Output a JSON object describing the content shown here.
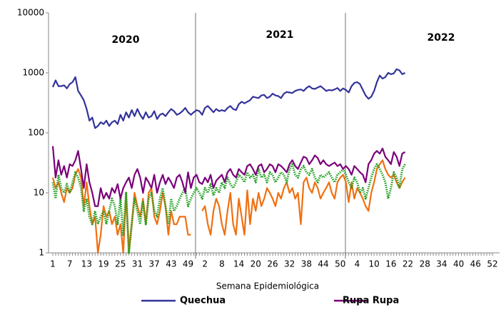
{
  "chart_data": {
    "type": "line",
    "log": true,
    "x_label": "Semana Epidemiológica",
    "annotations": [
      "2020",
      "2021",
      "2022"
    ],
    "ylim": [
      1,
      10000
    ],
    "yticks": [
      1,
      10,
      100,
      1000,
      10000
    ],
    "categories": [
      "1",
      null,
      null,
      null,
      null,
      null,
      "7",
      null,
      null,
      null,
      null,
      null,
      "13",
      null,
      null,
      null,
      null,
      null,
      "19",
      null,
      null,
      null,
      null,
      null,
      "25",
      null,
      null,
      null,
      null,
      null,
      "31",
      null,
      null,
      null,
      null,
      null,
      "37",
      null,
      null,
      null,
      null,
      null,
      "43",
      null,
      null,
      null,
      null,
      null,
      "49",
      null,
      null,
      null,
      null,
      null,
      "2",
      null,
      null,
      null,
      null,
      null,
      "8",
      null,
      null,
      null,
      null,
      null,
      "14",
      null,
      null,
      null,
      null,
      null,
      "20",
      null,
      null,
      null,
      null,
      null,
      "26",
      null,
      null,
      null,
      null,
      null,
      "32",
      null,
      null,
      null,
      null,
      null,
      "38",
      null,
      null,
      null,
      null,
      null,
      "44",
      null,
      null,
      null,
      null,
      null,
      "50",
      null,
      null,
      null,
      null,
      null,
      "4",
      null,
      null,
      null,
      null,
      null,
      "10",
      null,
      null,
      null,
      null,
      null,
      "16",
      null,
      null,
      null,
      null,
      null,
      "22",
      null,
      null,
      null,
      null,
      null,
      "28",
      null,
      null,
      null,
      null,
      null,
      "34",
      null,
      null,
      null,
      null,
      null,
      "40",
      null,
      null,
      null,
      null,
      null,
      "46",
      null,
      null,
      null,
      null,
      null,
      "52"
    ],
    "series": [
      {
        "color": "#f07010",
        "values": [
          18,
          12,
          15,
          10,
          7,
          12,
          10,
          12,
          20,
          25,
          18,
          6,
          15,
          6,
          3,
          4,
          1,
          2,
          6,
          4,
          5,
          3,
          4,
          2,
          3,
          1,
          10,
          1,
          3,
          10,
          6,
          4,
          8,
          3,
          10,
          12,
          4,
          3,
          5,
          10,
          6,
          2,
          5,
          3,
          3,
          4,
          4,
          4,
          2,
          2,
          null,
          null,
          null,
          5,
          6,
          3,
          2,
          5,
          8,
          6,
          3,
          2,
          5,
          10,
          3,
          2,
          8,
          4,
          2,
          11,
          3,
          8,
          5,
          10,
          6,
          8,
          12,
          10,
          8,
          6,
          10,
          8,
          12,
          15,
          10,
          12,
          8,
          10,
          3,
          15,
          18,
          12,
          10,
          15,
          12,
          8,
          10,
          12,
          15,
          10,
          8,
          15,
          18,
          20,
          15,
          7,
          15,
          8,
          12,
          10,
          8,
          6,
          5,
          10,
          15,
          25,
          30,
          35,
          25,
          20,
          18,
          20,
          15,
          12,
          15,
          18,
          null,
          null,
          null,
          null,
          null,
          null,
          null,
          null,
          null,
          null,
          null,
          null,
          null,
          null,
          null,
          null,
          null,
          null,
          null,
          null,
          null,
          null,
          null,
          null,
          null,
          null,
          null,
          null,
          null,
          null,
          null
        ]
      },
      {
        "color": "#22a022",
        "line_style": "dotted",
        "values": [
          15,
          8,
          20,
          12,
          10,
          14,
          10,
          15,
          22,
          18,
          12,
          5,
          8,
          4,
          3,
          5,
          3,
          4,
          5,
          3,
          5,
          8,
          6,
          3,
          8,
          2,
          10,
          1,
          3,
          8,
          5,
          3,
          7,
          3,
          8,
          10,
          5,
          4,
          8,
          12,
          6,
          3,
          8,
          5,
          6,
          8,
          10,
          12,
          6,
          8,
          10,
          12,
          10,
          8,
          12,
          10,
          14,
          9,
          12,
          10,
          15,
          12,
          18,
          14,
          12,
          15,
          20,
          18,
          15,
          22,
          18,
          20,
          15,
          25,
          18,
          20,
          15,
          22,
          20,
          15,
          18,
          22,
          20,
          15,
          25,
          30,
          20,
          18,
          25,
          28,
          22,
          20,
          25,
          18,
          15,
          20,
          18,
          20,
          22,
          18,
          15,
          20,
          22,
          25,
          20,
          15,
          12,
          18,
          15,
          10,
          12,
          8,
          12,
          18,
          25,
          30,
          25,
          20,
          15,
          8,
          12,
          22,
          18,
          12,
          25,
          30,
          null,
          null,
          null,
          null,
          null,
          null,
          null,
          null,
          null,
          null,
          null,
          null,
          null,
          null,
          null,
          null,
          null,
          null,
          null,
          null,
          null,
          null,
          null,
          null,
          null,
          null,
          null,
          null,
          null,
          null,
          null
        ]
      },
      {
        "name": "Rupa Rupa",
        "color": "#7a007a",
        "values": [
          60,
          18,
          35,
          20,
          28,
          18,
          30,
          28,
          35,
          50,
          25,
          12,
          30,
          15,
          10,
          6,
          6,
          12,
          8,
          10,
          8,
          12,
          10,
          14,
          8,
          12,
          15,
          18,
          12,
          20,
          25,
          18,
          10,
          18,
          15,
          12,
          20,
          10,
          15,
          20,
          14,
          18,
          15,
          12,
          18,
          20,
          15,
          10,
          22,
          12,
          18,
          20,
          15,
          14,
          18,
          15,
          20,
          12,
          16,
          18,
          20,
          15,
          22,
          25,
          20,
          18,
          25,
          22,
          20,
          28,
          30,
          25,
          20,
          28,
          30,
          22,
          25,
          30,
          28,
          22,
          30,
          28,
          25,
          22,
          30,
          35,
          28,
          25,
          32,
          40,
          38,
          30,
          35,
          42,
          38,
          30,
          35,
          30,
          28,
          30,
          32,
          28,
          30,
          25,
          28,
          25,
          20,
          28,
          25,
          22,
          20,
          15,
          30,
          35,
          45,
          50,
          45,
          55,
          40,
          35,
          30,
          48,
          40,
          28,
          45,
          48,
          null,
          null,
          null,
          null,
          null,
          null,
          null,
          null,
          null,
          null,
          null,
          null,
          null,
          null,
          null,
          null,
          null,
          null,
          null,
          null,
          null,
          null,
          null,
          null,
          null,
          null,
          null,
          null,
          null,
          null,
          null
        ]
      },
      {
        "name": "Quechua",
        "color": "#33339a",
        "values": [
          580,
          750,
          600,
          600,
          620,
          550,
          650,
          700,
          850,
          500,
          420,
          350,
          250,
          160,
          180,
          120,
          130,
          150,
          140,
          160,
          130,
          150,
          160,
          140,
          200,
          160,
          220,
          180,
          240,
          190,
          250,
          200,
          170,
          220,
          180,
          190,
          230,
          170,
          200,
          210,
          190,
          220,
          250,
          230,
          200,
          210,
          230,
          260,
          220,
          200,
          220,
          240,
          230,
          200,
          260,
          280,
          250,
          220,
          250,
          230,
          240,
          230,
          260,
          280,
          250,
          240,
          300,
          330,
          310,
          330,
          350,
          400,
          390,
          380,
          420,
          430,
          380,
          400,
          450,
          420,
          410,
          380,
          450,
          480,
          470,
          460,
          500,
          520,
          530,
          500,
          560,
          600,
          550,
          540,
          570,
          600,
          550,
          500,
          520,
          510,
          530,
          560,
          500,
          550,
          520,
          470,
          600,
          680,
          700,
          650,
          520,
          420,
          370,
          400,
          500,
          700,
          900,
          800,
          850,
          1000,
          950,
          980,
          1150,
          1100,
          950,
          1000,
          null,
          null,
          null,
          null,
          null,
          null,
          null,
          null,
          null,
          null,
          null,
          null,
          null,
          null,
          null,
          null,
          null,
          null,
          null,
          null,
          null,
          null,
          null,
          null,
          null,
          null,
          null,
          null,
          null,
          null,
          null
        ]
      }
    ]
  }
}
